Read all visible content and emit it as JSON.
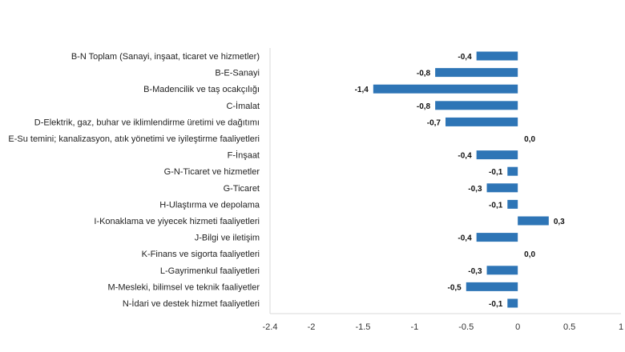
{
  "chart_data": {
    "type": "bar",
    "orientation": "horizontal",
    "categories": [
      "B-N Toplam (Sanayi, inşaat, ticaret ve hizmetler)",
      "B-E-Sanayi",
      "B-Madencilik ve taş ocakçılığı",
      "C-İmalat",
      "D-Elektrik, gaz, buhar ve iklimlendirme üretimi ve dağıtımı",
      "E-Su temini; kanalizasyon, atık yönetimi ve iyileştirme faaliyetleri",
      "F-İnşaat",
      "G-N-Ticaret ve hizmetler",
      "G-Ticaret",
      "H-Ulaştırma ve depolama",
      "I-Konaklama ve yiyecek hizmeti faaliyetleri",
      "J-Bilgi ve iletişim",
      "K-Finans ve sigorta faaliyetleri",
      "L-Gayrimenkul faaliyetleri",
      "M-Mesleki, bilimsel ve teknik faaliyetler",
      "N-İdari ve destek hizmet faaliyetleri"
    ],
    "values": [
      -0.4,
      -0.8,
      -1.4,
      -0.8,
      -0.7,
      0.0,
      -0.4,
      -0.1,
      -0.3,
      -0.1,
      0.3,
      -0.4,
      0.0,
      -0.3,
      -0.5,
      -0.1
    ],
    "value_labels": [
      "-0,4",
      "-0,8",
      "-1,4",
      "-0,8",
      "-0,7",
      "0,0",
      "-0,4",
      "-0,1",
      "-0,3",
      "-0,1",
      "0,3",
      "-0,4",
      "0,0",
      "-0,3",
      "-0,5",
      "-0,1"
    ],
    "xlim": [
      -2.4,
      1
    ],
    "xticks": [
      -2.4,
      -2,
      -1.5,
      -1,
      -0.5,
      0,
      0.5,
      1
    ],
    "xtick_labels": [
      "-2.4",
      "-2",
      "-1.5",
      "-1",
      "-0.5",
      "0",
      "0.5",
      "1"
    ],
    "bar_color": "#2e75b6",
    "grid": false,
    "title": "",
    "xlabel": "",
    "ylabel": ""
  }
}
